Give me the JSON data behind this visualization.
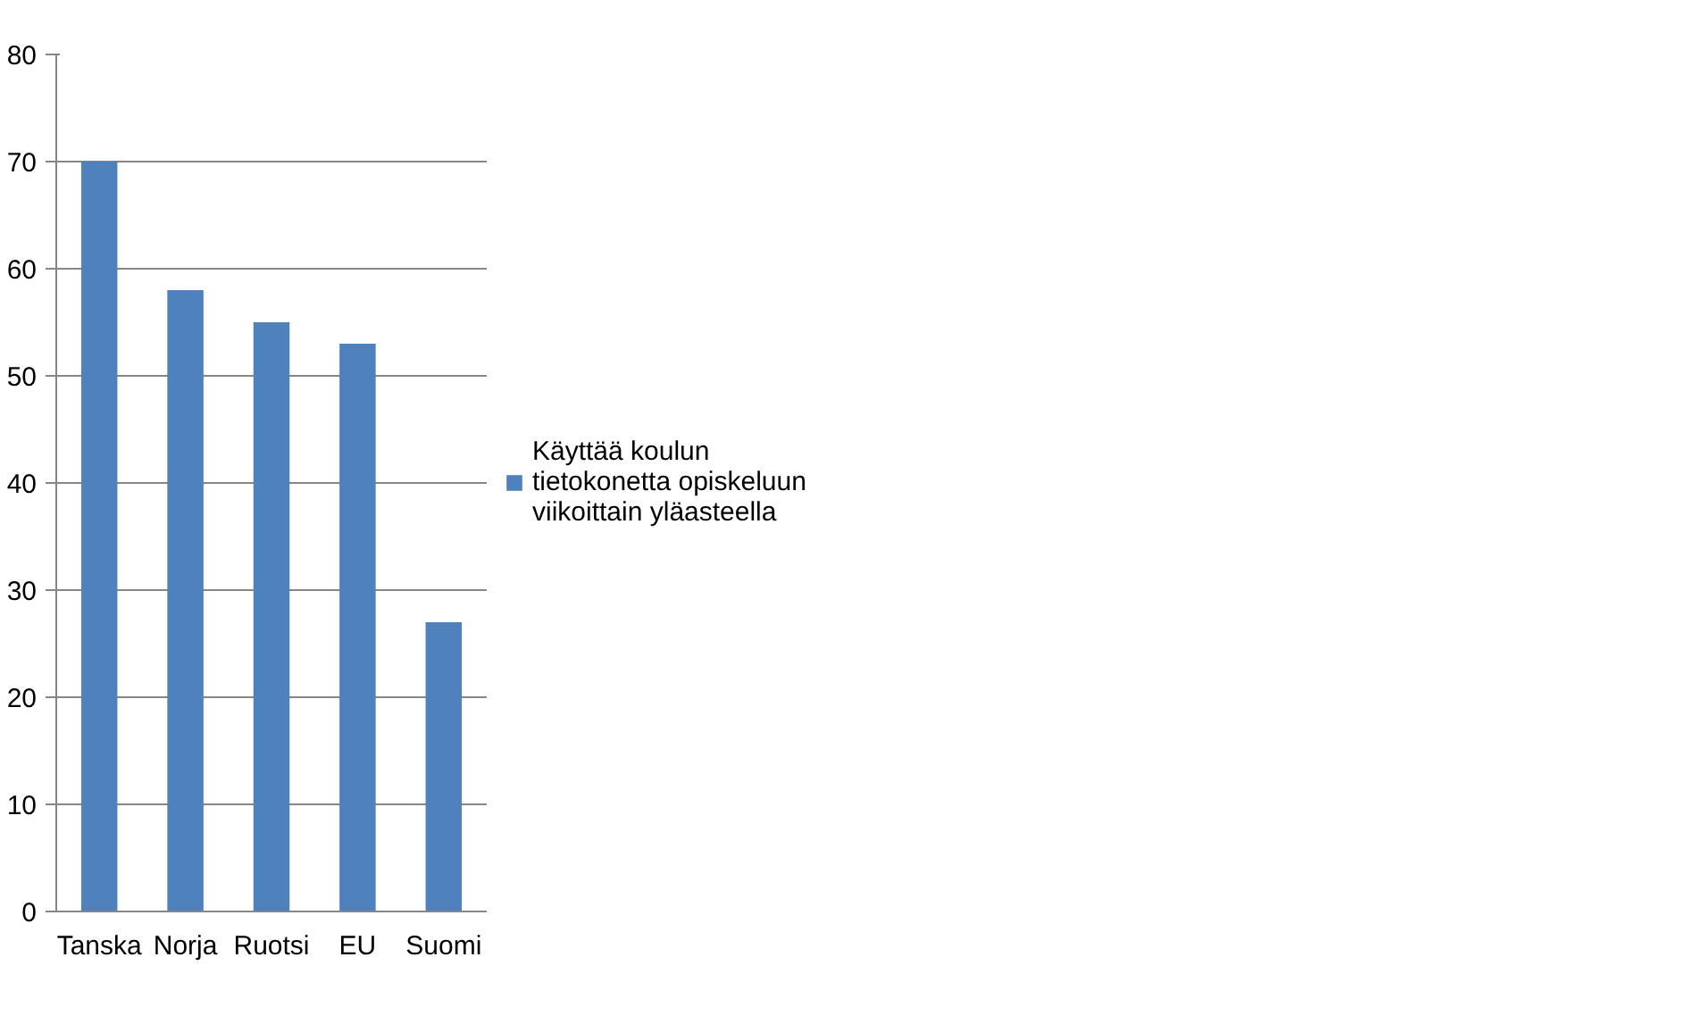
{
  "chart_data": {
    "type": "bar",
    "categories": [
      "Tanska",
      "Norja",
      "Ruotsi",
      "EU",
      "Suomi"
    ],
    "series": [
      {
        "name": "Käyttää koulun tietokonetta opiskeluun viikoittain yläasteella",
        "color": "#4f81bd",
        "values": [
          70,
          58,
          55,
          53,
          27
        ]
      }
    ],
    "ylim": [
      0,
      80
    ],
    "yticks": [
      0,
      10,
      20,
      30,
      40,
      50,
      60,
      70,
      80
    ],
    "grid": "y",
    "legend": "right"
  }
}
